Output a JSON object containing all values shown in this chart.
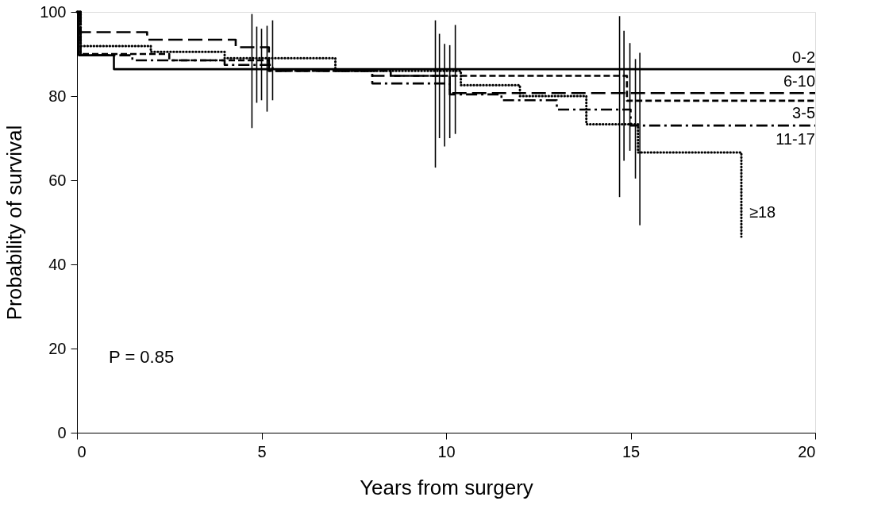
{
  "chart_data": {
    "type": "step",
    "xlabel": "Years from surgery",
    "ylabel": "Probability of survival",
    "xlim": [
      0,
      20
    ],
    "xticks": [
      0,
      5,
      10,
      15,
      20
    ],
    "ylim": [
      0,
      100
    ],
    "yticks": [
      0,
      20,
      40,
      60,
      80,
      100
    ],
    "grid": false,
    "legend": false,
    "marker": "none",
    "annotations": [
      "P = 0.85"
    ],
    "series": [
      {
        "name": "0-2",
        "color": "#000000",
        "line_style": "solid",
        "x": [
          0,
          0.05,
          1,
          4.74,
          9.71,
          14.7,
          20
        ],
        "values": [
          100,
          89.7,
          86.4,
          86.4,
          86.4,
          86.4,
          86.4
        ],
        "errors": [
          null,
          null,
          null,
          [
            72.4,
            99.5
          ],
          [
            63,
            98
          ],
          [
            56,
            99
          ],
          null
        ]
      },
      {
        "name": "3-5",
        "color": "#000000",
        "line_style": "dashed",
        "x": [
          0,
          0.1,
          2.5,
          4.87,
          5.2,
          8.5,
          9.82,
          14.82,
          14.9,
          20
        ],
        "values": [
          100,
          90,
          88.5,
          88.5,
          86,
          84.8,
          84.8,
          84.8,
          78.9,
          78.9
        ],
        "errors": [
          null,
          null,
          null,
          [
            78.4,
            96.5
          ],
          null,
          null,
          [
            70,
            94.8
          ],
          [
            64.6,
            95.5
          ],
          null,
          null
        ]
      },
      {
        "name": "6-10",
        "color": "#000000",
        "line_style": "longdash",
        "x": [
          0,
          0.1,
          1.9,
          4.3,
          5.0,
          5.2,
          8,
          9.96,
          10.1,
          14.98,
          20
        ],
        "values": [
          100,
          95.2,
          93.4,
          91.6,
          91.6,
          86,
          84.8,
          84.8,
          80.7,
          80.7,
          80.7
        ],
        "errors": [
          null,
          null,
          null,
          null,
          [
            79,
            96
          ],
          null,
          null,
          [
            68,
            92.4
          ],
          null,
          [
            67,
            92.6
          ],
          null
        ]
      },
      {
        "name": "11-17",
        "color": "#000000",
        "line_style": "dashdot",
        "x": [
          0,
          0.1,
          1.5,
          4,
          5.15,
          5.3,
          8,
          10.1,
          11.5,
          13,
          15.0,
          15.13,
          20
        ],
        "values": [
          100,
          89.7,
          88.5,
          87.4,
          87.4,
          86,
          83,
          80.4,
          79,
          76.8,
          73,
          73,
          73
        ],
        "errors": [
          null,
          null,
          null,
          null,
          [
            76.3,
            96.7
          ],
          null,
          null,
          [
            70,
            92.1
          ],
          null,
          null,
          null,
          [
            60.4,
            88.8
          ],
          null
        ]
      },
      {
        "name": "≥18",
        "color": "#000000",
        "line_style": "dotted",
        "x": [
          0,
          0.1,
          2,
          4,
          5.3,
          7,
          10.25,
          10.4,
          12,
          13.8,
          15.2,
          15.25,
          18
        ],
        "values": [
          100,
          91.9,
          90.5,
          89,
          89,
          86,
          86,
          82.6,
          80,
          73.3,
          66.6,
          66.6,
          46.6
        ],
        "errors": [
          null,
          null,
          null,
          null,
          [
            79,
            98
          ],
          null,
          [
            71,
            96.9
          ],
          null,
          null,
          null,
          null,
          [
            49.3,
            90.3
          ],
          null
        ]
      }
    ]
  }
}
